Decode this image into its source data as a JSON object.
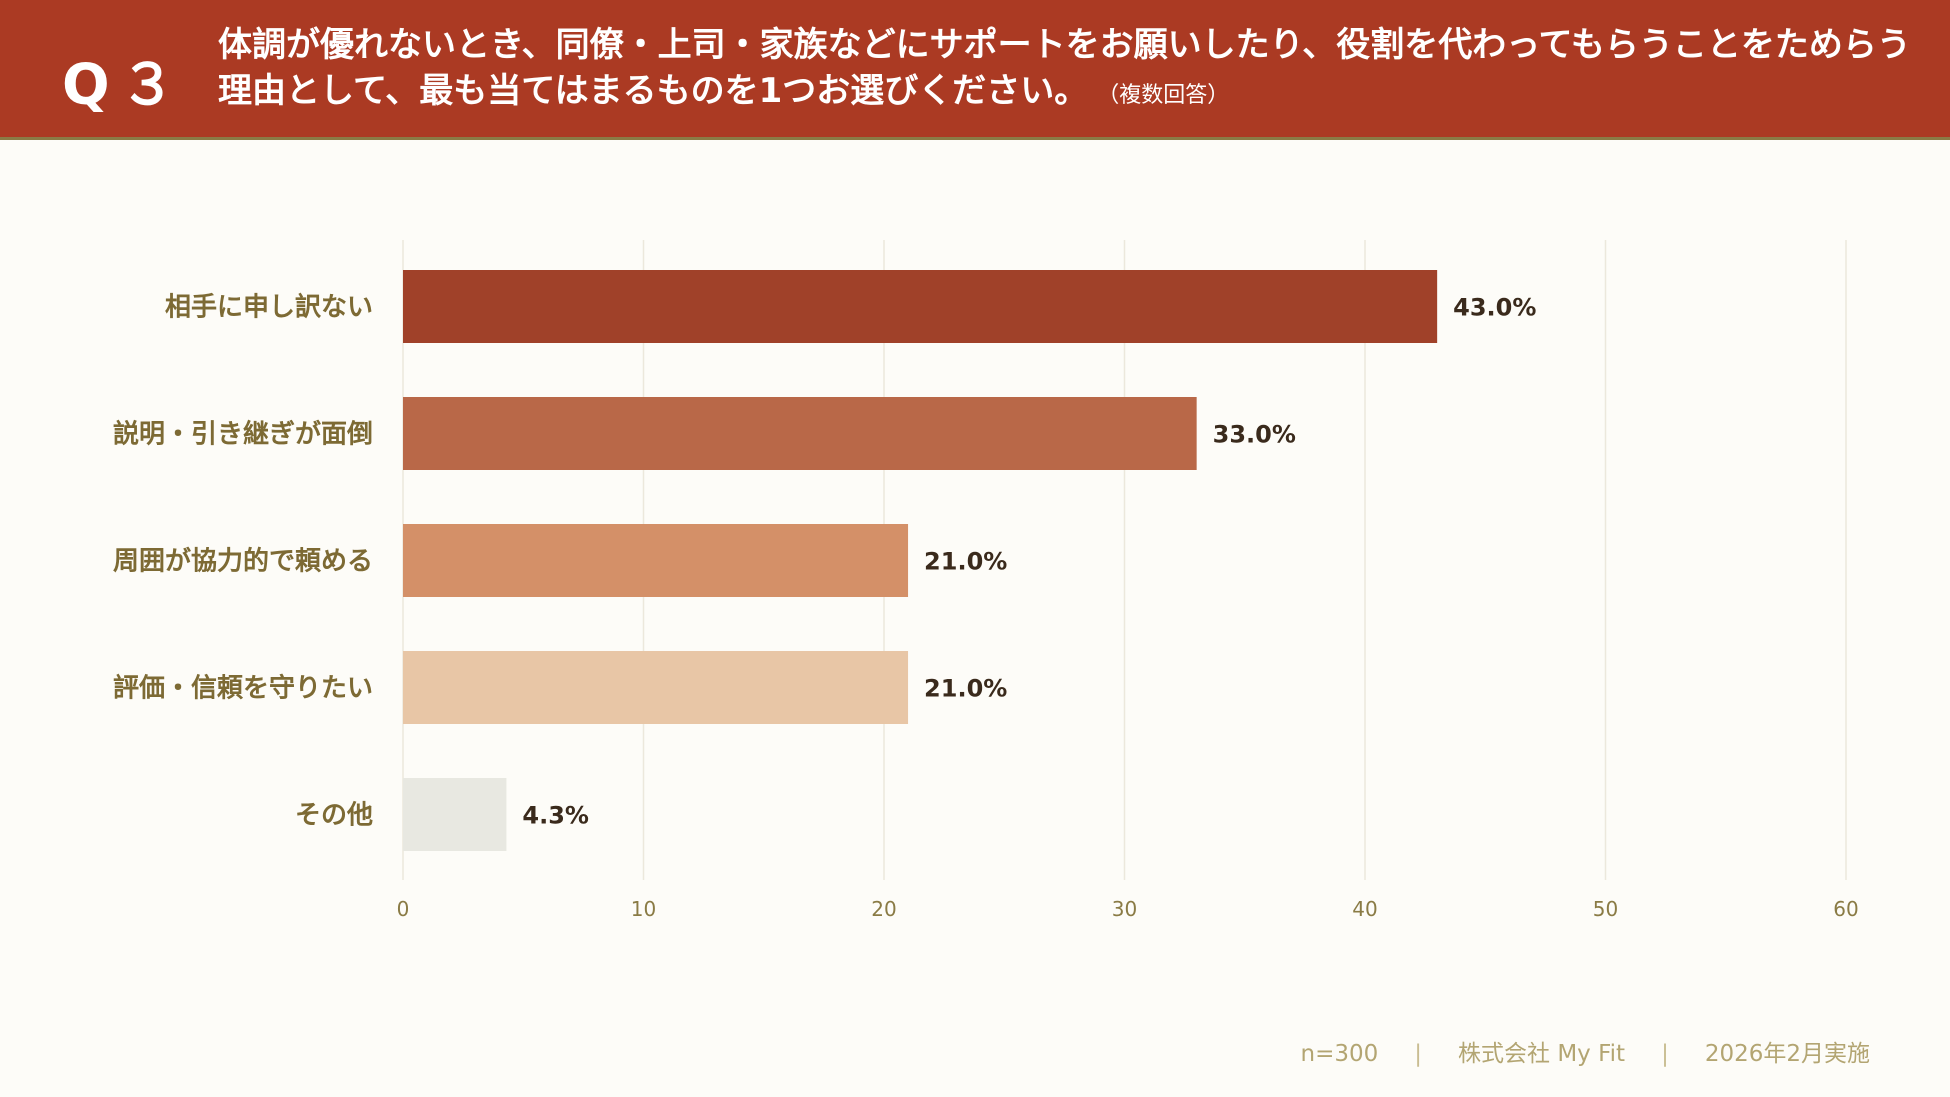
{
  "header": {
    "question_id": "Q３",
    "question_text": "体調が優れないとき、同僚・上司・家族などにサポートをお願いしたり、役割を代わってもらうことをためらう理由として、最も当てはまるものを1つお選びください。",
    "note": "（複数回答）"
  },
  "chart_data": {
    "type": "bar",
    "orientation": "horizontal",
    "categories": [
      "相手に申し訳ない",
      "説明・引き継ぎが面倒",
      "周囲が協力的で頼める",
      "評価・信頼を守りたい",
      "その他"
    ],
    "values": [
      43.0,
      33.0,
      21.0,
      21.0,
      4.3
    ],
    "value_labels": [
      "43.0%",
      "33.0%",
      "21.0%",
      "21.0%",
      "4.3%"
    ],
    "bar_colors": [
      "#a04129",
      "#b96848",
      "#d49068",
      "#e8c6a6",
      "#e8e8e1"
    ],
    "xlim": [
      0,
      60
    ],
    "xticks": [
      0,
      10,
      20,
      30,
      40,
      50,
      60
    ],
    "grid": true,
    "title": "",
    "xlabel": "",
    "ylabel": ""
  },
  "footer": {
    "sample": "n=300",
    "company": "株式会社 My Fit",
    "date": "2026年2月実施"
  },
  "colors": {
    "header_bg": "#ab3a23",
    "category_text": "#7d6a34",
    "value_text": "#3a2a1c",
    "grid": "#ece8dc",
    "tick_text": "#8a7b45"
  }
}
